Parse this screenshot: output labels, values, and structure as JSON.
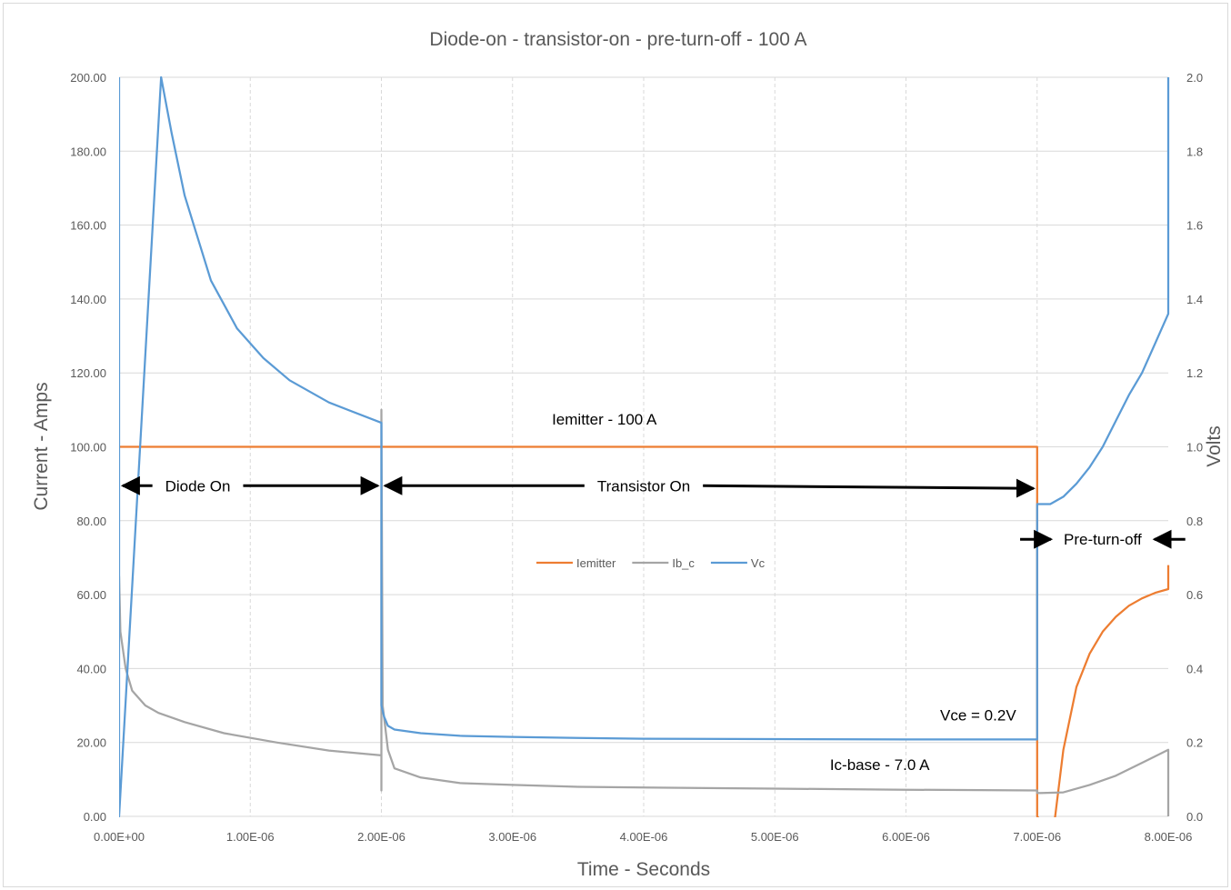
{
  "chart_data": {
    "type": "line",
    "title": "Diode-on - transistor-on - pre-turn-off - 100 A",
    "xlabel": "Time - Seconds",
    "ylabel": "Current - Amps",
    "y2label": "Volts",
    "xlim": [
      0,
      8e-06
    ],
    "ylim": [
      0,
      200
    ],
    "y2lim": [
      0,
      2.0
    ],
    "grid": true,
    "legend_position": "center",
    "x_ticks": [
      "0.00E+00",
      "1.00E-06",
      "2.00E-06",
      "3.00E-06",
      "4.00E-06",
      "5.00E-06",
      "6.00E-06",
      "7.00E-06",
      "8.00E-06"
    ],
    "y_ticks": [
      "0.00",
      "20.00",
      "40.00",
      "60.00",
      "80.00",
      "100.00",
      "120.00",
      "140.00",
      "160.00",
      "180.00",
      "200.00"
    ],
    "y2_ticks": [
      "0.0",
      "0.2",
      "0.4",
      "0.6",
      "0.8",
      "1.0",
      "1.2",
      "1.4",
      "1.6",
      "1.8",
      "2.0"
    ],
    "series": [
      {
        "name": "Iemitter",
        "axis": "left",
        "color": "#ed7d31",
        "x": [
          0,
          2e-06,
          7e-06,
          7e-06,
          7.12e-06,
          7.2e-06,
          7.3e-06,
          7.4e-06,
          7.5e-06,
          7.6e-06,
          7.7e-06,
          7.8e-06,
          7.9e-06,
          8e-06,
          8e-06
        ],
        "y": [
          100,
          100,
          100,
          0,
          -5,
          18,
          35,
          44,
          50,
          54,
          57,
          59,
          60.5,
          61.5,
          68
        ]
      },
      {
        "name": "Ib_c",
        "axis": "left",
        "color": "#a5a5a5",
        "x": [
          0,
          1e-08,
          5e-08,
          1e-07,
          2e-07,
          3e-07,
          5e-07,
          8e-07,
          1.2e-06,
          1.6e-06,
          2e-06,
          2e-06,
          2e-06,
          2.01e-06,
          2.05e-06,
          2.1e-06,
          2.3e-06,
          2.6e-06,
          3e-06,
          3.5e-06,
          4e-06,
          5e-06,
          6e-06,
          7e-06,
          7e-06,
          7.2e-06,
          7.4e-06,
          7.6e-06,
          7.8e-06,
          8e-06,
          8e-06
        ],
        "y": [
          65,
          50,
          40,
          34,
          30,
          28,
          25.5,
          22.5,
          20,
          17.8,
          16.5,
          7,
          110,
          30,
          18,
          13,
          10.5,
          9,
          8.5,
          8,
          7.8,
          7.5,
          7.2,
          7,
          6.3,
          6.5,
          8.5,
          11,
          14.5,
          18,
          0
        ]
      },
      {
        "name": "Vc",
        "axis": "right",
        "color": "#5b9bd5",
        "x": [
          0,
          0,
          3.2e-07,
          4e-07,
          5e-07,
          7e-07,
          9e-07,
          1.1e-06,
          1.3e-06,
          1.6e-06,
          2e-06,
          2e-06,
          2.02e-06,
          2.05e-06,
          2.1e-06,
          2.3e-06,
          2.6e-06,
          3e-06,
          3.5e-06,
          4e-06,
          5e-06,
          6e-06,
          7e-06,
          7e-06,
          7.1e-06,
          7.2e-06,
          7.3e-06,
          7.4e-06,
          7.5e-06,
          7.6e-06,
          7.7e-06,
          7.8e-06,
          7.9e-06,
          8e-06,
          8e-06
        ],
        "y": [
          2.0,
          0.0,
          2.0,
          1.85,
          1.68,
          1.45,
          1.32,
          1.24,
          1.18,
          1.12,
          1.065,
          0.3,
          0.27,
          0.245,
          0.235,
          0.225,
          0.218,
          0.215,
          0.212,
          0.21,
          0.209,
          0.208,
          0.208,
          0.845,
          0.845,
          0.865,
          0.9,
          0.945,
          1.0,
          1.07,
          1.14,
          1.2,
          1.28,
          1.36,
          2.0
        ]
      }
    ],
    "annotations": [
      {
        "text": "Iemitter - 100 A",
        "x": 3.7e-06,
        "y": 106
      },
      {
        "text": "Diode On",
        "x": 6e-07,
        "y": 88,
        "arrow": "both",
        "x_from": 0,
        "x_to": 2e-06
      },
      {
        "text": "Transistor On",
        "x": 4e-06,
        "y": 88,
        "arrow": "both",
        "x_from": 2e-06,
        "x_to": 7e-06
      },
      {
        "text": "Pre-turn-off",
        "x": 7.5e-06,
        "y": 73.5,
        "arrow": "inward"
      },
      {
        "text": "Vce = 0.2V",
        "x": 6.55e-06,
        "y": 26
      },
      {
        "text": "Ic-base - 7.0 A",
        "x": 5.8e-06,
        "y": 12.5
      }
    ]
  }
}
